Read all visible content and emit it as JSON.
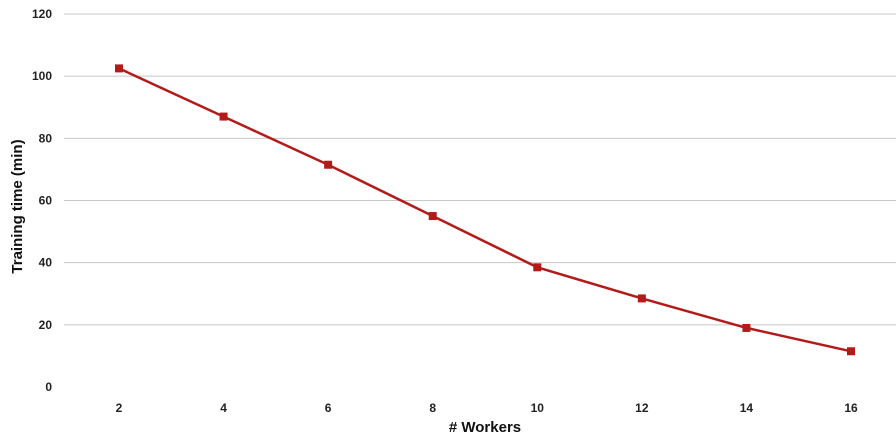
{
  "chart_data": {
    "type": "line",
    "title": "",
    "xlabel": "# Workers",
    "ylabel": "Training time (min)",
    "x": [
      2,
      4,
      6,
      8,
      10,
      12,
      14,
      16
    ],
    "series": [
      {
        "values": [
          102.5,
          87,
          71.5,
          55,
          38.5,
          28.5,
          19,
          11.5
        ]
      }
    ],
    "ylim": [
      0,
      120
    ],
    "yticks": [
      0,
      20,
      40,
      60,
      80,
      100,
      120
    ],
    "grid": "horizontal",
    "legend": "none",
    "marker": "square",
    "series_color": "#b31b1b"
  }
}
